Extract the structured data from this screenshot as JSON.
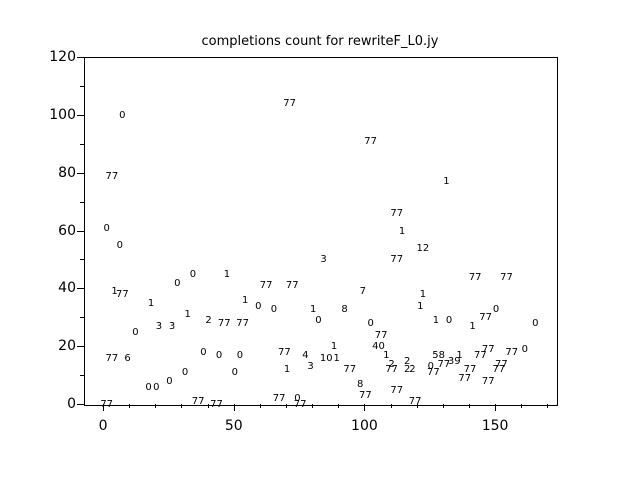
{
  "chart_data": {
    "type": "scatter",
    "title": "completions count for rewriteF_L0.jy",
    "xlabel": "",
    "ylabel": "",
    "marker_style": "text-label",
    "grid": false,
    "legend": null,
    "xlim": [
      -7.3,
      173.3
    ],
    "ylim": [
      0,
      120
    ],
    "x_major_ticks": [
      0,
      50,
      100,
      150
    ],
    "x_minor_step": 10,
    "y_major_ticks": [
      0,
      20,
      40,
      60,
      80,
      100,
      120
    ],
    "y_minor_step": 10,
    "points": [
      {
        "x": 71,
        "y": 104,
        "label": "77"
      },
      {
        "x": 7,
        "y": 100,
        "label": "0"
      },
      {
        "x": 102,
        "y": 91,
        "label": "77"
      },
      {
        "x": 3,
        "y": 79,
        "label": "77"
      },
      {
        "x": 131,
        "y": 77,
        "label": "1"
      },
      {
        "x": 112,
        "y": 66,
        "label": "77"
      },
      {
        "x": 1,
        "y": 61,
        "label": "0"
      },
      {
        "x": 114,
        "y": 60,
        "label": "1"
      },
      {
        "x": 6,
        "y": 55,
        "label": "0"
      },
      {
        "x": 122,
        "y": 54,
        "label": "12"
      },
      {
        "x": 84,
        "y": 50,
        "label": "3"
      },
      {
        "x": 112,
        "y": 50,
        "label": "77"
      },
      {
        "x": 34,
        "y": 45,
        "label": "0"
      },
      {
        "x": 47,
        "y": 45,
        "label": "1"
      },
      {
        "x": 142,
        "y": 44,
        "label": "77"
      },
      {
        "x": 154,
        "y": 44,
        "label": "77"
      },
      {
        "x": 28,
        "y": 42,
        "label": "0"
      },
      {
        "x": 62,
        "y": 41,
        "label": "77"
      },
      {
        "x": 72,
        "y": 41,
        "label": "77"
      },
      {
        "x": 4,
        "y": 39,
        "label": "1"
      },
      {
        "x": 99,
        "y": 39,
        "label": "7"
      },
      {
        "x": 7,
        "y": 38,
        "label": "77"
      },
      {
        "x": 122,
        "y": 38,
        "label": "1"
      },
      {
        "x": 54,
        "y": 36,
        "label": "1"
      },
      {
        "x": 18,
        "y": 35,
        "label": "1"
      },
      {
        "x": 59,
        "y": 34,
        "label": "0"
      },
      {
        "x": 65,
        "y": 33,
        "label": "0"
      },
      {
        "x": 80,
        "y": 33,
        "label": "1"
      },
      {
        "x": 92,
        "y": 33,
        "label": "8"
      },
      {
        "x": 121,
        "y": 34,
        "label": "1"
      },
      {
        "x": 150,
        "y": 33,
        "label": "0"
      },
      {
        "x": 32,
        "y": 31,
        "label": "1"
      },
      {
        "x": 146,
        "y": 30,
        "label": "77"
      },
      {
        "x": 40,
        "y": 29,
        "label": "2"
      },
      {
        "x": 82,
        "y": 29,
        "label": "0"
      },
      {
        "x": 127,
        "y": 29,
        "label": "1"
      },
      {
        "x": 132,
        "y": 29,
        "label": "0"
      },
      {
        "x": 46,
        "y": 28,
        "label": "77"
      },
      {
        "x": 53,
        "y": 28,
        "label": "77"
      },
      {
        "x": 102,
        "y": 28,
        "label": "0"
      },
      {
        "x": 165,
        "y": 28,
        "label": "0"
      },
      {
        "x": 21,
        "y": 27,
        "label": "3"
      },
      {
        "x": 26,
        "y": 27,
        "label": "3"
      },
      {
        "x": 141,
        "y": 27,
        "label": "1"
      },
      {
        "x": 12,
        "y": 25,
        "label": "0"
      },
      {
        "x": 106,
        "y": 24,
        "label": "77"
      },
      {
        "x": 88,
        "y": 20,
        "label": "1"
      },
      {
        "x": 105,
        "y": 20,
        "label": "40"
      },
      {
        "x": 161,
        "y": 19,
        "label": "0"
      },
      {
        "x": 147,
        "y": 19,
        "label": "77"
      },
      {
        "x": 38,
        "y": 18,
        "label": "0"
      },
      {
        "x": 69,
        "y": 18,
        "label": "77"
      },
      {
        "x": 156,
        "y": 18,
        "label": "77"
      },
      {
        "x": 44,
        "y": 17,
        "label": "0"
      },
      {
        "x": 52,
        "y": 17,
        "label": "0"
      },
      {
        "x": 77,
        "y": 17,
        "label": "4"
      },
      {
        "x": 108,
        "y": 17,
        "label": "1"
      },
      {
        "x": 128,
        "y": 17,
        "label": "58"
      },
      {
        "x": 136,
        "y": 17,
        "label": "1"
      },
      {
        "x": 144,
        "y": 17,
        "label": "77"
      },
      {
        "x": 3,
        "y": 16,
        "label": "77"
      },
      {
        "x": 9,
        "y": 16,
        "label": "6"
      },
      {
        "x": 85,
        "y": 16,
        "label": "10"
      },
      {
        "x": 89,
        "y": 16,
        "label": "1"
      },
      {
        "x": 116,
        "y": 15,
        "label": "2"
      },
      {
        "x": 134,
        "y": 15,
        "label": "39"
      },
      {
        "x": 110,
        "y": 14,
        "label": "2"
      },
      {
        "x": 130,
        "y": 14,
        "label": "77"
      },
      {
        "x": 152,
        "y": 14,
        "label": "77"
      },
      {
        "x": 79,
        "y": 13,
        "label": "3"
      },
      {
        "x": 125,
        "y": 13,
        "label": "0"
      },
      {
        "x": 70,
        "y": 12,
        "label": "1"
      },
      {
        "x": 94,
        "y": 12,
        "label": "77"
      },
      {
        "x": 110,
        "y": 12,
        "label": "77"
      },
      {
        "x": 116,
        "y": 12,
        "label": "2"
      },
      {
        "x": 118,
        "y": 12,
        "label": "2"
      },
      {
        "x": 140,
        "y": 12,
        "label": "77"
      },
      {
        "x": 151,
        "y": 12,
        "label": "77"
      },
      {
        "x": 31,
        "y": 11,
        "label": "0"
      },
      {
        "x": 50,
        "y": 11,
        "label": "0"
      },
      {
        "x": 126,
        "y": 11,
        "label": "77"
      },
      {
        "x": 138,
        "y": 9,
        "label": "77"
      },
      {
        "x": 25,
        "y": 8,
        "label": "0"
      },
      {
        "x": 147,
        "y": 8,
        "label": "77"
      },
      {
        "x": 98,
        "y": 7,
        "label": "8"
      },
      {
        "x": 17,
        "y": 6,
        "label": "0"
      },
      {
        "x": 20,
        "y": 6,
        "label": "0"
      },
      {
        "x": 112,
        "y": 5,
        "label": "77"
      },
      {
        "x": 100,
        "y": 3,
        "label": "77"
      },
      {
        "x": 67,
        "y": 2,
        "label": "77"
      },
      {
        "x": 74,
        "y": 2,
        "label": "0"
      },
      {
        "x": 119,
        "y": 1,
        "label": "77"
      },
      {
        "x": 36,
        "y": 1,
        "label": "77"
      },
      {
        "x": 1,
        "y": 0,
        "label": "77"
      },
      {
        "x": 43,
        "y": 0,
        "label": "77"
      },
      {
        "x": 75,
        "y": 0,
        "label": "77"
      }
    ]
  }
}
